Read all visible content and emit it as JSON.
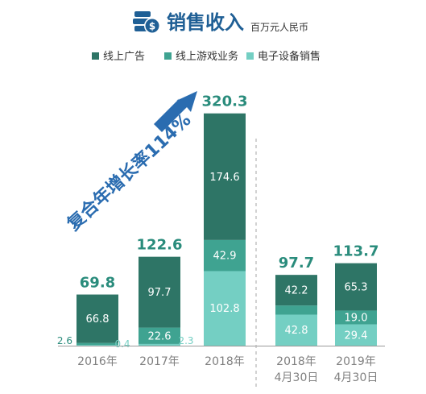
{
  "title": "销售收入",
  "unit": "百万元人民币",
  "cagr_annotation": "复合年增长率114%",
  "colors": {
    "ad": "#2e7566",
    "game": "#3fa391",
    "device": "#74cfc3",
    "title": "#1f5f95",
    "arrow": "#2a6cb0",
    "total": "#2a8c7c",
    "axis": "#808080"
  },
  "chart_data": {
    "type": "bar",
    "stacked": true,
    "title": "销售收入",
    "unit": "百万元人民币",
    "categories": [
      [
        "2016年"
      ],
      [
        "2017年"
      ],
      [
        "2018年"
      ],
      [
        "2018年",
        "4月30日"
      ],
      [
        "2019年",
        "4月30日"
      ]
    ],
    "series": [
      {
        "name": "线上广告",
        "values": [
          66.8,
          97.7,
          174.6,
          42.2,
          65.3
        ]
      },
      {
        "name": "线上游戏业务",
        "values": [
          2.6,
          22.6,
          42.9,
          12.6,
          19.0
        ]
      },
      {
        "name": "电子设备销售",
        "values": [
          0.4,
          2.3,
          102.8,
          42.8,
          29.4
        ]
      }
    ],
    "value_labels": [
      [
        "66.8",
        "97.7",
        "174.6",
        "42.2",
        "65.3"
      ],
      [
        "2.6",
        "22.6",
        "42.9",
        "12.6",
        "19.0"
      ],
      [
        "0.4",
        "2.3",
        "102.8",
        "42.8",
        "29.4"
      ]
    ],
    "totals": [
      "69.8",
      "122.6",
      "320.3",
      "97.7",
      "113.7"
    ],
    "legend_position": "top",
    "grid": false
  }
}
